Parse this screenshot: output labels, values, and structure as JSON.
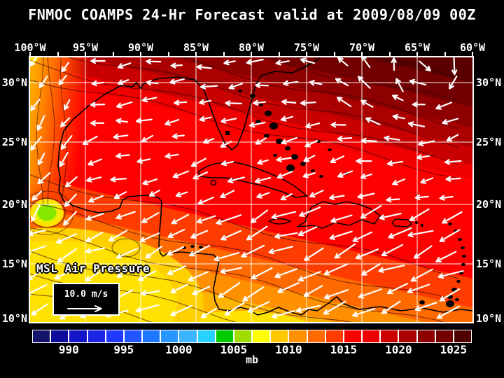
{
  "title": "FNMOC COAMPS 24-Hr Forecast valid at 2009/08/09 00Z",
  "axes": {
    "lon_labels": [
      "100°W",
      "95°W",
      "90°W",
      "85°W",
      "80°W",
      "75°W",
      "70°W",
      "65°W",
      "60°W"
    ],
    "lat_labels": [
      "30°N",
      "25°N",
      "20°N",
      "15°N",
      "10°N"
    ]
  },
  "map": {
    "field_label": "MSL Air Pressure",
    "wind_legend_speed": "10.0 m/s"
  },
  "colorbar": {
    "unit": "mb",
    "tick_labels": [
      "990",
      "995",
      "1000",
      "1005",
      "1010",
      "1015",
      "1020",
      "1025"
    ],
    "colors": [
      "#14146b",
      "#0d0d9a",
      "#1414c8",
      "#1c24e6",
      "#2038ff",
      "#2055ff",
      "#1e78ff",
      "#2896ff",
      "#3cb4ff",
      "#28d2ff",
      "#00cc00",
      "#a0dc00",
      "#ffff00",
      "#ffc800",
      "#ff9100",
      "#ff6a00",
      "#ff3c00",
      "#ff0000",
      "#ee0000",
      "#cd0000",
      "#aa0000",
      "#8e0000",
      "#720000",
      "#4e0000"
    ]
  },
  "chart_data": {
    "type": "heatmap",
    "title": "FNMOC COAMPS 24-Hr Forecast valid at 2009/08/09 00Z",
    "variable": "MSL Air Pressure",
    "unit": "mb",
    "x_ticks": [
      "100°W",
      "95°W",
      "90°W",
      "85°W",
      "80°W",
      "75°W",
      "70°W",
      "65°W",
      "60°W"
    ],
    "y_ticks": [
      "30°N",
      "25°N",
      "20°N",
      "15°N",
      "10°N"
    ],
    "colorbar_values": [
      990,
      995,
      1000,
      1005,
      1010,
      1015,
      1020,
      1025
    ],
    "wind_reference_speed": "10.0 m/s",
    "region": "Gulf of Mexico and Caribbean Sea",
    "pressure_estimates_mb": {
      "lons": [
        "100W",
        "95W",
        "90W",
        "85W",
        "80W",
        "75W",
        "70W",
        "65W",
        "60W"
      ],
      "lats": [
        "30N",
        "25N",
        "20N",
        "15N",
        "10N"
      ],
      "grid": [
        [
          1013,
          1016,
          1017,
          1018,
          1021,
          1023,
          1024,
          1025,
          1025
        ],
        [
          1012,
          1015,
          1016,
          1017,
          1018,
          1019,
          1020,
          1021,
          1022
        ],
        [
          1008,
          1012,
          1014,
          1016,
          1016,
          1017,
          1017,
          1017,
          1018
        ],
        [
          1006,
          1009,
          1011,
          1012,
          1013,
          1014,
          1014,
          1015,
          1015
        ],
        [
          1008,
          1009,
          1010,
          1010,
          1011,
          1011,
          1012,
          1012,
          1013
        ]
      ]
    },
    "wind_summary": "White wind vectors: easterly trade winds (W to WSW pointing arrows) over the Caribbean, clockwise flow around a subtropical high northeast of the Bahamas",
    "legend_position": "bottom",
    "grid": true
  }
}
